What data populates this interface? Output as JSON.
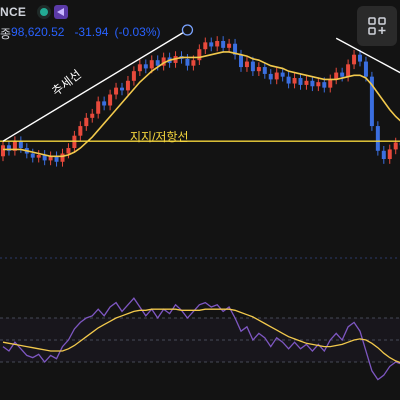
{
  "header": {
    "exchange": "NCE",
    "status_color": "#22ab94",
    "logo_icon": "indicator-logo-icon"
  },
  "ohlc": {
    "label": "종",
    "close": "98,620.52",
    "change": "-31.94",
    "change_pct": "(-0.03%)"
  },
  "annotations": {
    "trend_line": "추세선",
    "support_resistance": "지지/저항선"
  },
  "toolbar": {
    "layout_icon": "layout-grid-plus-icon"
  },
  "colors": {
    "up": "#e84a3c",
    "down": "#3b6fe0",
    "ma": "#f2c94c",
    "support": "#f5d63d",
    "trend": "#ffffff",
    "rsi": "#7e57c2",
    "rsi_ma": "#f2c94c"
  },
  "chart_data": {
    "type": "candlestick",
    "candles": [
      {
        "o": 96.4,
        "c": 97.2
      },
      {
        "o": 97.2,
        "c": 96.8
      },
      {
        "o": 96.8,
        "c": 97.5
      },
      {
        "o": 97.5,
        "c": 97.0
      },
      {
        "o": 97.0,
        "c": 96.6
      },
      {
        "o": 96.6,
        "c": 96.3
      },
      {
        "o": 96.3,
        "c": 96.5
      },
      {
        "o": 96.5,
        "c": 96.1
      },
      {
        "o": 96.1,
        "c": 96.4
      },
      {
        "o": 96.4,
        "c": 96.0
      },
      {
        "o": 96.0,
        "c": 96.6
      },
      {
        "o": 96.6,
        "c": 97.0
      },
      {
        "o": 97.0,
        "c": 97.9
      },
      {
        "o": 97.9,
        "c": 98.6
      },
      {
        "o": 98.6,
        "c": 99.2
      },
      {
        "o": 99.2,
        "c": 99.5
      },
      {
        "o": 99.5,
        "c": 100.4
      },
      {
        "o": 100.4,
        "c": 100.1
      },
      {
        "o": 100.1,
        "c": 100.9
      },
      {
        "o": 100.9,
        "c": 101.4
      },
      {
        "o": 101.4,
        "c": 101.2
      },
      {
        "o": 101.2,
        "c": 101.9
      },
      {
        "o": 101.9,
        "c": 102.6
      },
      {
        "o": 102.6,
        "c": 103.1
      },
      {
        "o": 103.1,
        "c": 102.8
      },
      {
        "o": 102.8,
        "c": 103.4
      },
      {
        "o": 103.4,
        "c": 103.0
      },
      {
        "o": 103.0,
        "c": 103.6
      },
      {
        "o": 103.6,
        "c": 103.2
      },
      {
        "o": 103.2,
        "c": 103.7
      },
      {
        "o": 103.7,
        "c": 103.5
      },
      {
        "o": 103.5,
        "c": 103.0
      },
      {
        "o": 103.0,
        "c": 103.4
      },
      {
        "o": 103.4,
        "c": 104.2
      },
      {
        "o": 104.2,
        "c": 104.7
      },
      {
        "o": 104.7,
        "c": 104.4
      },
      {
        "o": 104.4,
        "c": 104.8
      },
      {
        "o": 104.8,
        "c": 104.3
      },
      {
        "o": 104.3,
        "c": 104.6
      },
      {
        "o": 104.6,
        "c": 103.8
      },
      {
        "o": 103.8,
        "c": 102.9
      },
      {
        "o": 102.9,
        "c": 103.3
      },
      {
        "o": 103.3,
        "c": 102.6
      },
      {
        "o": 102.6,
        "c": 102.9
      },
      {
        "o": 102.9,
        "c": 102.4
      },
      {
        "o": 102.4,
        "c": 102.0
      },
      {
        "o": 102.0,
        "c": 102.5
      },
      {
        "o": 102.5,
        "c": 102.2
      },
      {
        "o": 102.2,
        "c": 101.7
      },
      {
        "o": 101.7,
        "c": 102.1
      },
      {
        "o": 102.1,
        "c": 101.6
      },
      {
        "o": 101.6,
        "c": 101.9
      },
      {
        "o": 101.9,
        "c": 101.5
      },
      {
        "o": 101.5,
        "c": 101.8
      },
      {
        "o": 101.8,
        "c": 101.4
      },
      {
        "o": 101.4,
        "c": 102.0
      },
      {
        "o": 102.0,
        "c": 102.5
      },
      {
        "o": 102.5,
        "c": 102.2
      },
      {
        "o": 102.2,
        "c": 103.1
      },
      {
        "o": 103.1,
        "c": 103.8
      },
      {
        "o": 103.8,
        "c": 103.3
      },
      {
        "o": 103.3,
        "c": 102.2
      },
      {
        "o": 102.2,
        "c": 98.6
      },
      {
        "o": 98.6,
        "c": 96.8
      },
      {
        "o": 96.8,
        "c": 96.2
      },
      {
        "o": 96.2,
        "c": 96.9
      },
      {
        "o": 96.9,
        "c": 97.4
      },
      {
        "o": 97.4,
        "c": 97.2
      },
      {
        "o": 97.2,
        "c": 97.6
      }
    ],
    "ma": [
      96.9,
      96.9,
      96.9,
      96.9,
      96.8,
      96.7,
      96.6,
      96.5,
      96.4,
      96.4,
      96.4,
      96.5,
      96.7,
      97.0,
      97.4,
      97.8,
      98.3,
      98.8,
      99.3,
      99.8,
      100.3,
      100.8,
      101.3,
      101.8,
      102.2,
      102.6,
      102.9,
      103.2,
      103.4,
      103.5,
      103.6,
      103.6,
      103.6,
      103.6,
      103.7,
      103.8,
      103.9,
      104.0,
      104.0,
      103.9,
      103.8,
      103.7,
      103.5,
      103.4,
      103.2,
      103.0,
      102.9,
      102.8,
      102.6,
      102.5,
      102.4,
      102.3,
      102.2,
      102.1,
      102.0,
      102.0,
      102.0,
      102.1,
      102.2,
      102.3,
      102.3,
      102.1,
      101.6,
      101.0,
      100.4,
      99.8,
      99.3,
      98.9,
      98.5
    ],
    "support_level": 97.5,
    "trend_lines": [
      {
        "from": [
          0,
          97.5
        ],
        "to": [
          31,
          105.6
        ]
      },
      {
        "from": [
          56,
          105.0
        ],
        "to": [
          68,
          102.2
        ]
      }
    ],
    "rsi": [
      44,
      40,
      48,
      42,
      36,
      34,
      37,
      30,
      36,
      33,
      44,
      50,
      60,
      66,
      70,
      72,
      78,
      72,
      80,
      84,
      76,
      82,
      88,
      80,
      72,
      78,
      70,
      78,
      74,
      82,
      77,
      70,
      76,
      82,
      84,
      80,
      82,
      76,
      80,
      70,
      58,
      62,
      50,
      56,
      52,
      44,
      52,
      48,
      42,
      48,
      42,
      46,
      40,
      46,
      40,
      50,
      56,
      50,
      62,
      66,
      58,
      40,
      22,
      14,
      18,
      26,
      30,
      28,
      30
    ],
    "rsi_ma": [
      48,
      47,
      46,
      45,
      44,
      43,
      42,
      41,
      40,
      40,
      40,
      42,
      45,
      49,
      53,
      57,
      61,
      64,
      67,
      70,
      72,
      74,
      76,
      77,
      77,
      78,
      78,
      78,
      78,
      78,
      77,
      77,
      77,
      77,
      78,
      78,
      78,
      78,
      78,
      77,
      75,
      73,
      71,
      68,
      65,
      62,
      59,
      56,
      53,
      51,
      49,
      47,
      46,
      45,
      44,
      44,
      45,
      46,
      48,
      50,
      51,
      50,
      47,
      43,
      38,
      34,
      31,
      29,
      28
    ]
  }
}
